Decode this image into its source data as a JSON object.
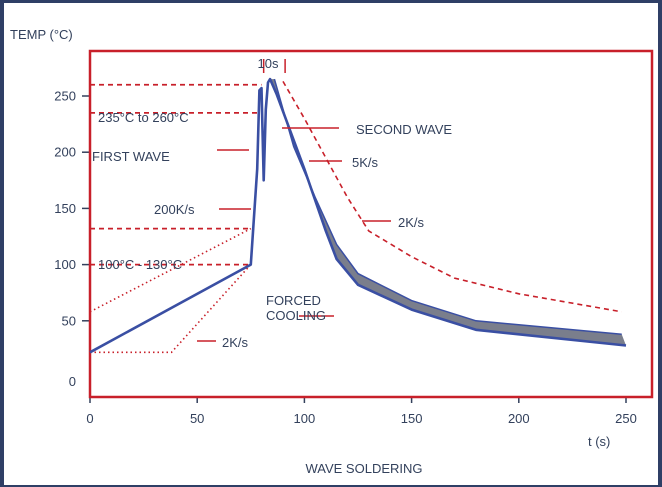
{
  "colors": {
    "border_red": "#c8202a",
    "curve_blue": "#3a4fa3",
    "band_gray": "#7a7e8c",
    "text": "#33415c",
    "background_navy": "#2f3f66"
  },
  "chart_data": {
    "type": "line",
    "title": "WAVE SOLDERING",
    "ylabel": "TEMP (°C)",
    "xlabel": "t (s)",
    "xlim": [
      0,
      250
    ],
    "ylim": [
      0,
      280
    ],
    "x_ticks": [
      "0",
      "50",
      "100",
      "150",
      "200",
      "250"
    ],
    "y_ticks": [
      "0",
      "50",
      "100",
      "150",
      "200",
      "250"
    ],
    "grid": false,
    "series": [
      {
        "style": "solid blue profile (lower / typical curve)",
        "points": [
          [
            0,
            22
          ],
          [
            75,
            100
          ],
          [
            78,
            185
          ],
          [
            79,
            255
          ],
          [
            80,
            257
          ],
          [
            81,
            175
          ],
          [
            82,
            238
          ],
          [
            83,
            262
          ],
          [
            84,
            265
          ],
          [
            87,
            252
          ],
          [
            100,
            185
          ],
          [
            110,
            130
          ],
          [
            115,
            105
          ],
          [
            125,
            82
          ],
          [
            150,
            60
          ],
          [
            180,
            42
          ],
          [
            250,
            28
          ]
        ]
      },
      {
        "style": "upper edge of gray band (solid)",
        "points": [
          [
            86,
            265
          ],
          [
            95,
            205
          ],
          [
            105,
            160
          ],
          [
            115,
            118
          ],
          [
            125,
            92
          ],
          [
            150,
            68
          ],
          [
            180,
            50
          ],
          [
            248,
            38
          ]
        ]
      },
      {
        "style": "red dashed upper limit profile",
        "points": [
          [
            90,
            263
          ],
          [
            100,
            230
          ],
          [
            110,
            195
          ],
          [
            120,
            160
          ],
          [
            130,
            130
          ],
          [
            150,
            107
          ],
          [
            170,
            88
          ],
          [
            200,
            74
          ],
          [
            248,
            58
          ]
        ]
      },
      {
        "style": "red dotted preheat lower bound",
        "points": [
          [
            0,
            22
          ],
          [
            38,
            22
          ],
          [
            75,
            100
          ]
        ]
      },
      {
        "style": "red dotted preheat upper bound",
        "points": [
          [
            0,
            58
          ],
          [
            75,
            132
          ]
        ]
      }
    ],
    "reference_lines": [
      {
        "label": "235°C to 260°C",
        "y_values": [
          260,
          235
        ],
        "x_end": 80
      },
      {
        "label": "100°C - 130°C",
        "y_values": [
          132,
          100
        ],
        "x_end": 75
      }
    ],
    "bracket": {
      "label": "10s",
      "x_values": [
        81,
        91
      ]
    },
    "annotations": [
      {
        "id": "first_wave",
        "text": "FIRST WAVE"
      },
      {
        "id": "second_wave",
        "text": "SECOND WAVE"
      },
      {
        "id": "rate_200",
        "text": "200K/s"
      },
      {
        "id": "rate_5",
        "text": "5K/s"
      },
      {
        "id": "rate_2_upper",
        "text": "2K/s"
      },
      {
        "id": "rate_2_lower",
        "text": "2K/s"
      },
      {
        "id": "forced_cooling_1",
        "text": "FORCED"
      },
      {
        "id": "forced_cooling_2",
        "text": "COOLING"
      }
    ]
  }
}
